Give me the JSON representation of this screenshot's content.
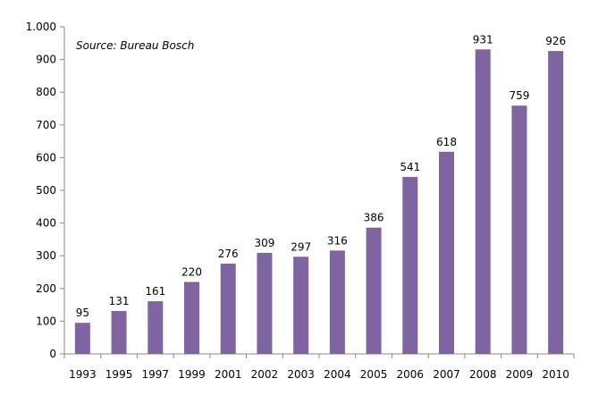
{
  "chart_data": {
    "type": "bar",
    "title": "",
    "xlabel": "",
    "ylabel": "",
    "annotation": "Source: Bureau Bosch",
    "categories": [
      "1993",
      "1995",
      "1997",
      "1999",
      "2001",
      "2002",
      "2003",
      "2004",
      "2005",
      "2006",
      "2007",
      "2008",
      "2009",
      "2010"
    ],
    "values": [
      95,
      131,
      161,
      220,
      276,
      309,
      297,
      316,
      386,
      541,
      618,
      931,
      759,
      926
    ],
    "data_labels": [
      "95",
      "131",
      "161",
      "220",
      "276",
      "309",
      "297",
      "316",
      "386",
      "541",
      "618",
      "931",
      "759",
      "926"
    ],
    "ylim": [
      0,
      1000
    ],
    "y_ticks": [
      0,
      100,
      200,
      300,
      400,
      500,
      600,
      700,
      800,
      900,
      1000
    ],
    "y_tick_labels": [
      "0",
      "100",
      "200",
      "300",
      "400",
      "500",
      "600",
      "700",
      "800",
      "900",
      "1.000"
    ],
    "bar_color": "#8064a2",
    "grid": false,
    "legend": "none"
  }
}
